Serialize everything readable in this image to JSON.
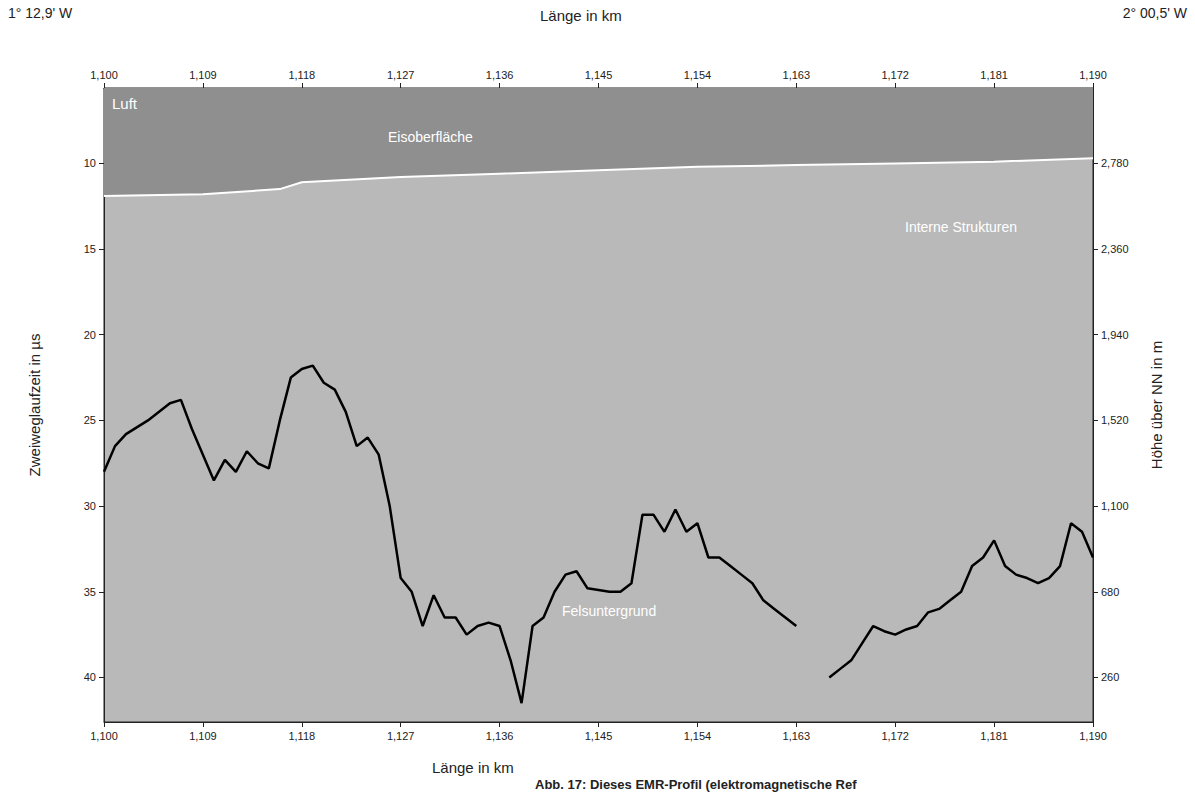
{
  "chart_data": {
    "type": "line",
    "corner_labels": {
      "left": "1° 12,9' W",
      "right": "2° 00,5' W"
    },
    "x_label": "Länge in km",
    "y_label": "Zweiweglaufzeit in µs",
    "y2_label": "Höhe über NN in m",
    "caption": "Abb. 17: Dieses EMR-Profil (elektromagnetische Ref",
    "annotations": [
      "Luft",
      "Interne Strukturen"
    ],
    "xlim": [
      1100,
      1190
    ],
    "xticks": [
      1100,
      1109,
      1118,
      1127,
      1136,
      1145,
      1154,
      1163,
      1172,
      1181,
      1190
    ],
    "ylim": [
      5.6,
      42.6
    ],
    "yticks": [
      10,
      15,
      20,
      25,
      30,
      35,
      40
    ],
    "y2lim": [
      41.6,
      3149.6
    ],
    "y2ticks": [
      260,
      680,
      1100,
      1520,
      1940,
      2360,
      2780
    ],
    "grid": false,
    "series": [
      {
        "name": "Eisoberfläche",
        "color": "#ffffff",
        "x": [
          1100,
          1109,
          1116,
          1118,
          1127,
          1136,
          1145,
          1154,
          1163,
          1172,
          1181,
          1190
        ],
        "values": [
          11.9,
          11.8,
          11.5,
          11.1,
          10.8,
          10.6,
          10.4,
          10.2,
          10.1,
          10.0,
          9.9,
          9.7
        ]
      },
      {
        "name": "Felsuntergrund",
        "color": "#000000",
        "x": [
          1100,
          1101,
          1102,
          1104,
          1106,
          1107,
          1108,
          1109,
          1110,
          1111,
          1112,
          1113,
          1114,
          1115,
          1116,
          1117,
          1118,
          1119,
          1120,
          1121,
          1122,
          1123,
          1124,
          1125,
          1126,
          1127,
          1128,
          1129,
          1130,
          1131,
          1132,
          1133,
          1134,
          1135,
          1136,
          1137,
          1138,
          1139,
          1140,
          1141,
          1142,
          1143,
          1144,
          1146,
          1147,
          1148,
          1149,
          1150,
          1151,
          1152,
          1153,
          1154,
          1155,
          1156,
          1157,
          1158,
          1159,
          1160,
          1161,
          1162,
          1163,
          1164,
          1165,
          1166,
          1167,
          1168,
          1169,
          1170,
          1171,
          1172,
          1173,
          1174,
          1175,
          1176,
          1177,
          1178,
          1179,
          1180,
          1181,
          1182,
          1183,
          1184,
          1185,
          1186,
          1187,
          1188,
          1189,
          1190
        ],
        "values": [
          28,
          26.5,
          25.8,
          25,
          24,
          23.8,
          25.5,
          27,
          28.5,
          27.3,
          28,
          26.8,
          27.5,
          27.8,
          25,
          22.5,
          22,
          21.8,
          22.8,
          23.2,
          24.5,
          26.5,
          26,
          27,
          30,
          34.2,
          35,
          37,
          35.2,
          36.5,
          36.5,
          37.5,
          37,
          36.8,
          37,
          39,
          41.5,
          37,
          36.5,
          35,
          34,
          33.8,
          34.8,
          35,
          35,
          34.5,
          30.5,
          30.5,
          31.5,
          30.2,
          31.5,
          31,
          33,
          33,
          33.5,
          34,
          34.5,
          35.5,
          36,
          36.5,
          37,
          null,
          null,
          40,
          39.5,
          39,
          38,
          37,
          37.3,
          37.5,
          37.2,
          37,
          36.2,
          36,
          35.5,
          35,
          33.5,
          33,
          32,
          33.5,
          34,
          34.2,
          34.5,
          34.2,
          33.5,
          31,
          31.5,
          33
        ]
      }
    ]
  }
}
